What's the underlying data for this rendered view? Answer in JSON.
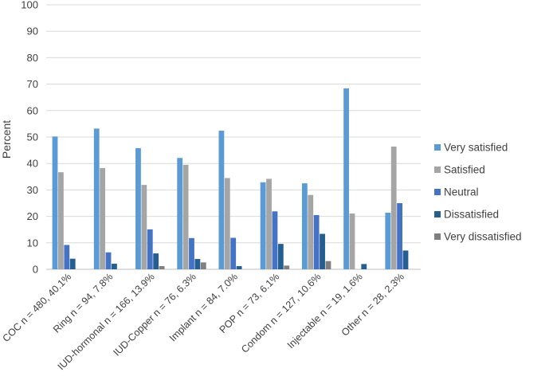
{
  "chart_data": {
    "type": "bar",
    "title": "",
    "xlabel": "",
    "ylabel": "Percent",
    "ylim": [
      0,
      100
    ],
    "yticks": [
      0,
      10,
      20,
      30,
      40,
      50,
      60,
      70,
      80,
      90,
      100
    ],
    "grid": true,
    "legend_position": "right",
    "categories": [
      "COC n = 480, 40.1%",
      "Ring n = 94, 7.8%",
      "IUD-hormonal n = 166, 13.9%",
      "IUD-Copper n = 76, 6.3%",
      "Implant n = 84, 7.0%",
      "POP n = 73, 6.1%",
      "Condom n = 127, 10.6%",
      "Injectable n = 19, 1.6%",
      "Other n = 28, 2.3%"
    ],
    "series": [
      {
        "name": "Very satisfied",
        "color": "#5b9bd5",
        "values": [
          50.2,
          53.2,
          45.8,
          42.1,
          52.4,
          32.9,
          32.5,
          68.4,
          21.4
        ]
      },
      {
        "name": "Satisfied",
        "color": "#a5a5a5",
        "values": [
          36.7,
          38.3,
          31.9,
          39.5,
          34.5,
          34.2,
          28.1,
          21.1,
          46.4
        ]
      },
      {
        "name": "Neutral",
        "color": "#4472c4",
        "values": [
          9.2,
          6.4,
          15.1,
          11.8,
          11.9,
          21.9,
          20.5,
          0,
          25.0
        ]
      },
      {
        "name": "Dissatisfied",
        "color": "#255e91",
        "values": [
          4.0,
          2.1,
          6.0,
          3.9,
          1.2,
          9.6,
          13.4,
          2.0,
          7.1
        ]
      },
      {
        "name": "Very dissatisfied",
        "color": "#7f7f7f",
        "values": [
          0,
          0,
          1.2,
          2.6,
          0,
          1.4,
          3.1,
          0,
          0
        ]
      }
    ]
  }
}
